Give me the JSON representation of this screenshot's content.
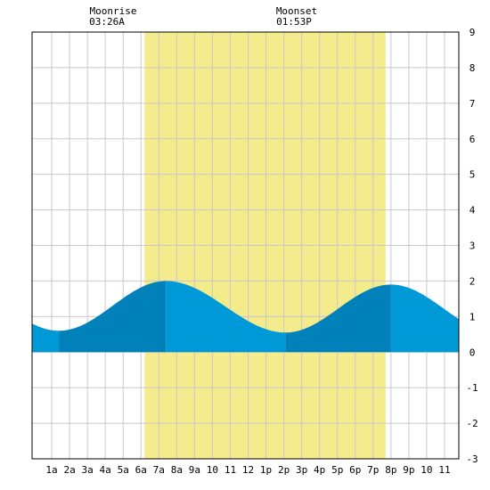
{
  "moon": {
    "rise_title": "Moonrise",
    "rise_time": "03:26A",
    "set_title": "Moonset",
    "set_time": "01:53P"
  },
  "chart_data": {
    "type": "area",
    "title": "",
    "xlabel": "",
    "ylabel": "",
    "xlim": [
      -0.1,
      23.8
    ],
    "ylim": [
      -3,
      9
    ],
    "grid": true,
    "y_ticks": [
      -3,
      -2,
      -1,
      0,
      1,
      2,
      3,
      4,
      5,
      6,
      7,
      8,
      9
    ],
    "x_tick_hours": [
      1,
      2,
      3,
      4,
      5,
      6,
      7,
      8,
      9,
      10,
      11,
      12,
      13,
      14,
      15,
      16,
      17,
      18,
      19,
      20,
      21,
      22,
      23
    ],
    "x_tick_labels": [
      "1a",
      "2a",
      "3a",
      "4a",
      "5a",
      "6a",
      "7a",
      "8a",
      "9a",
      "10",
      "11",
      "12",
      "1p",
      "2p",
      "3p",
      "4p",
      "5p",
      "6p",
      "7p",
      "8p",
      "9p",
      "10",
      "11"
    ],
    "daylight_hours": [
      6.2,
      19.7
    ],
    "tide_extrema": [
      {
        "hour": 1.4,
        "height": 0.6
      },
      {
        "hour": 7.4,
        "height": 2.0
      },
      {
        "hour": 14.1,
        "height": 0.55
      },
      {
        "hour": 20.0,
        "height": 1.9
      }
    ],
    "tide_end_heights": {
      "start": 0.75,
      "end": 1.0
    },
    "band_boundaries_hours": [
      1.4,
      7.4,
      14.1,
      20.0
    ],
    "colors": {
      "daylight": "#f4eb8c",
      "tide_light": "#0099d8",
      "tide_dark": "#0081ba",
      "grid": "#c8c8c8"
    }
  }
}
